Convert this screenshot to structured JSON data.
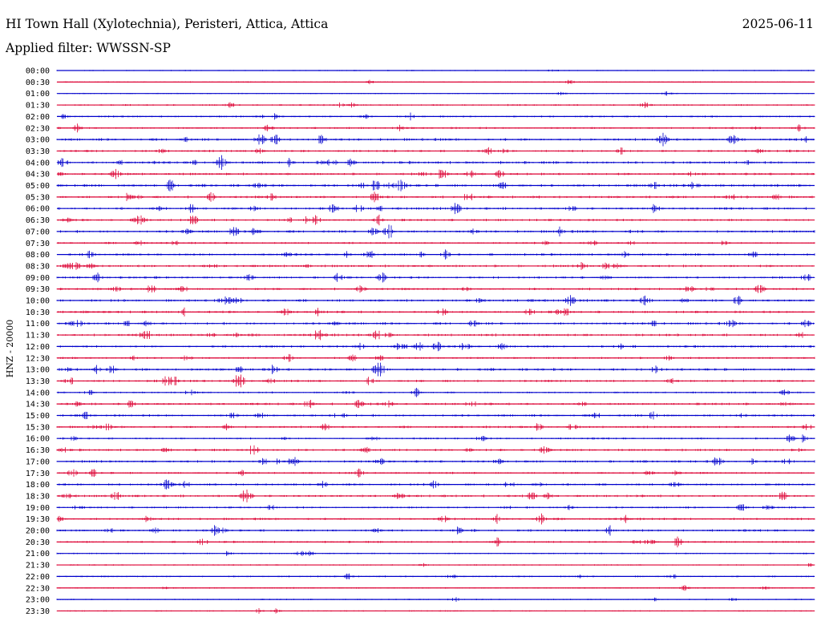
{
  "header": {
    "station": "HI Town Hall (Xylotechnia), Peristeri, Attica, Attica",
    "date": "2025-06-11",
    "filter_label": "Applied filter:",
    "filter_value": "WWSSN-SP"
  },
  "chart_data": {
    "type": "line",
    "title": "HI Town Hall (Xylotechnia), Peristeri, Attica, Attica",
    "ylabel": "HNZ - 20000",
    "row_labels": [
      "00:00",
      "00:30",
      "01:00",
      "01:30",
      "02:00",
      "02:30",
      "03:00",
      "03:30",
      "04:00",
      "04:30",
      "05:00",
      "05:30",
      "06:00",
      "06:30",
      "07:00",
      "07:30",
      "08:00",
      "08:30",
      "09:00",
      "09:30",
      "10:00",
      "10:30",
      "11:00",
      "11:30",
      "12:00",
      "12:30",
      "13:00",
      "13:30",
      "14:00",
      "14:30",
      "15:00",
      "15:30",
      "16:00",
      "16:30",
      "17:00",
      "17:30",
      "18:00",
      "18:30",
      "19:00",
      "19:30",
      "20:00",
      "20:30",
      "21:00",
      "21:30",
      "22:00",
      "22:30",
      "23:00",
      "23:30"
    ],
    "series_colors": [
      "#0000cc",
      "#dd0033"
    ],
    "grid": false,
    "activity": [
      0.1,
      0.2,
      0.15,
      0.4,
      0.5,
      0.6,
      0.9,
      0.8,
      1.0,
      0.8,
      1.0,
      0.9,
      0.9,
      0.8,
      0.9,
      0.6,
      0.8,
      0.8,
      0.7,
      0.8,
      0.9,
      0.8,
      0.9,
      0.9,
      0.8,
      0.6,
      0.9,
      0.8,
      0.5,
      0.8,
      0.8,
      0.7,
      0.6,
      0.8,
      0.8,
      0.6,
      0.8,
      0.8,
      0.6,
      0.7,
      0.8,
      0.6,
      0.3,
      0.2,
      0.4,
      0.25,
      0.3,
      0.2
    ]
  }
}
